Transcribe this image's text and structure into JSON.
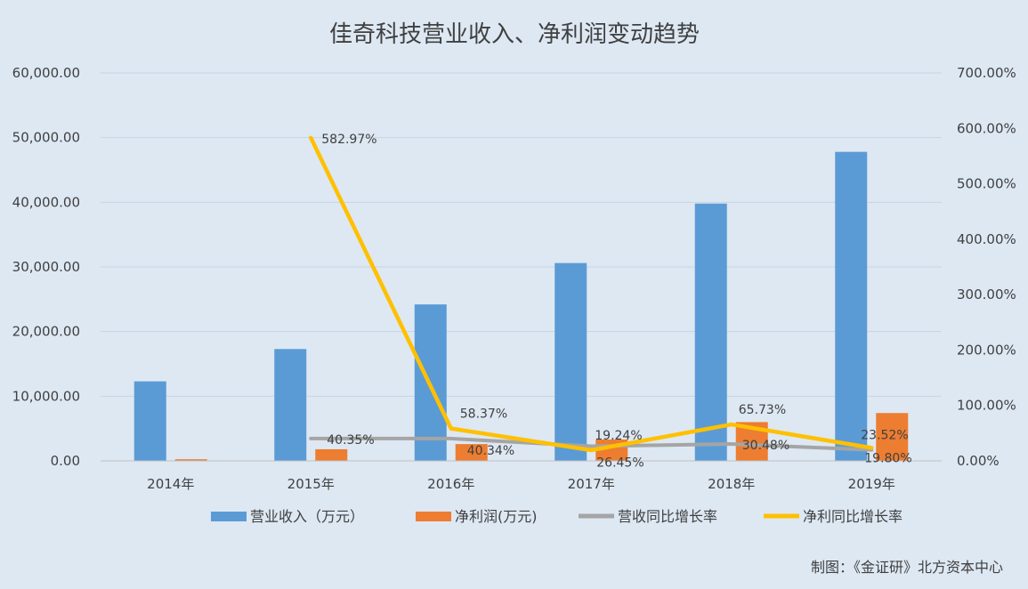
{
  "chart_data": {
    "type": "bar+line",
    "title": "佳奇科技营业收入、净利润变动趋势",
    "categories": [
      "2014年",
      "2015年",
      "2016年",
      "2017年",
      "2018年",
      "2019年"
    ],
    "y_left": {
      "ylim": [
        0,
        60000
      ],
      "ticks": [
        "0.00",
        "10,000.00",
        "20,000.00",
        "30,000.00",
        "40,000.00",
        "50,000.00",
        "60,000.00"
      ]
    },
    "y_right": {
      "ylim": [
        0,
        700
      ],
      "ticks": [
        "0.00%",
        "100.00%",
        "200.00%",
        "300.00%",
        "400.00%",
        "500.00%",
        "600.00%",
        "700.00%"
      ]
    },
    "series": [
      {
        "name": "营业收入（万元）",
        "type": "bar",
        "axis": "left",
        "color": "#5b9bd5",
        "values": [
          12300,
          17300,
          24200,
          30600,
          39800,
          47800
        ]
      },
      {
        "name": "净利润(万元)",
        "type": "bar",
        "axis": "left",
        "color": "#ed7d31",
        "values": [
          250,
          1800,
          2600,
          3300,
          6000,
          7400
        ]
      },
      {
        "name": "营收同比增长率",
        "type": "line",
        "axis": "right",
        "color": "#a5a5a5",
        "values": [
          null,
          40.35,
          40.34,
          26.45,
          30.48,
          19.8
        ],
        "labels": [
          null,
          "40.35%",
          "40.34%",
          "26.45%",
          "30.48%",
          "19.80%"
        ]
      },
      {
        "name": "净利同比增长率",
        "type": "line",
        "axis": "right",
        "color": "#ffc000",
        "values": [
          null,
          582.97,
          58.37,
          19.24,
          65.73,
          23.52
        ],
        "labels": [
          null,
          "582.97%",
          "58.37%",
          "19.24%",
          "65.73%",
          "23.52%"
        ]
      }
    ],
    "legend_position": "bottom",
    "grid": true
  },
  "source_note": "制图：《金证研》北方资本中心"
}
